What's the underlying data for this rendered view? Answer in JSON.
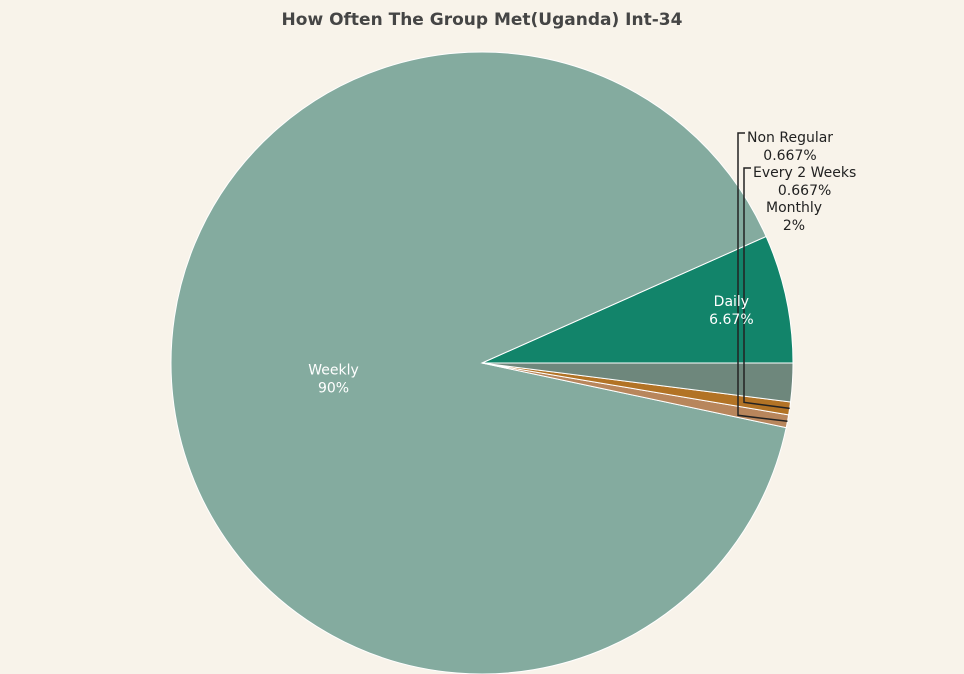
{
  "chart_data": {
    "type": "pie",
    "title": "How Often The Group Met(Uganda) Int-34",
    "slices": [
      {
        "label": "Daily",
        "percent_text": "6.67%",
        "value": 6.67,
        "color": "#12846a",
        "label_color": "#ffffff"
      },
      {
        "label": "Weekly",
        "percent_text": "90%",
        "value": 90,
        "color": "#84ab9f",
        "label_color": "#ffffff"
      },
      {
        "label": "Non Regular",
        "percent_text": "0.667%",
        "value": 0.667,
        "color": "#b8865c",
        "label_color": "#222222"
      },
      {
        "label": "Every 2 Weeks",
        "percent_text": "0.667%",
        "value": 0.667,
        "color": "#b27325",
        "label_color": "#222222"
      },
      {
        "label": "Monthly",
        "percent_text": "2%",
        "value": 2,
        "color": "#6e877c",
        "label_color": "#222222"
      }
    ]
  }
}
